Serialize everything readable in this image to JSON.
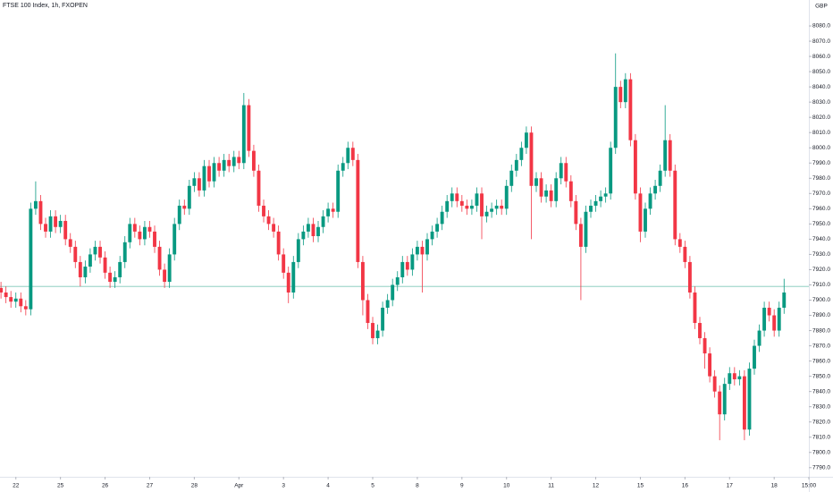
{
  "chart_data": {
    "type": "candlestick",
    "title": "FTSE 100 Index, 1h, FXOPEN",
    "currency": "GBP",
    "up_color": "#089981",
    "down_color": "#f23645",
    "reference_line": 7909,
    "reference_color": "#7fc7b8",
    "xlim": [
      -0.2,
      163
    ],
    "xticks": [
      {
        "value": 3,
        "label": "22"
      },
      {
        "value": 12,
        "label": "25"
      },
      {
        "value": 21,
        "label": "26"
      },
      {
        "value": 30,
        "label": "27"
      },
      {
        "value": 39,
        "label": "28"
      },
      {
        "value": 48,
        "label": "Apr"
      },
      {
        "value": 57,
        "label": "3"
      },
      {
        "value": 66,
        "label": "4"
      },
      {
        "value": 75,
        "label": "5"
      },
      {
        "value": 84,
        "label": "8"
      },
      {
        "value": 93,
        "label": "9"
      },
      {
        "value": 102,
        "label": "10"
      },
      {
        "value": 111,
        "label": "11"
      },
      {
        "value": 120,
        "label": "12"
      },
      {
        "value": 129,
        "label": "15"
      },
      {
        "value": 138,
        "label": "16"
      },
      {
        "value": 147,
        "label": "17"
      },
      {
        "value": 156,
        "label": "18"
      },
      {
        "value": 163,
        "label": "15:00"
      }
    ],
    "ylim": [
      7784,
      8090
    ],
    "yticks": [
      {
        "value": 7790,
        "label": "7790.0"
      },
      {
        "value": 7800,
        "label": "7800.0"
      },
      {
        "value": 7810,
        "label": "7810.0"
      },
      {
        "value": 7820,
        "label": "7820.0"
      },
      {
        "value": 7830,
        "label": "7830.0"
      },
      {
        "value": 7840,
        "label": "7840.0"
      },
      {
        "value": 7850,
        "label": "7850.0"
      },
      {
        "value": 7860,
        "label": "7860.0"
      },
      {
        "value": 7870,
        "label": "7870.0"
      },
      {
        "value": 7880,
        "label": "7880.0"
      },
      {
        "value": 7890,
        "label": "7890.0"
      },
      {
        "value": 7900,
        "label": "7900.0"
      },
      {
        "value": 7910,
        "label": "7910.0"
      },
      {
        "value": 7920,
        "label": "7920.0"
      },
      {
        "value": 7930,
        "label": "7930.0"
      },
      {
        "value": 7940,
        "label": "7940.0"
      },
      {
        "value": 7950,
        "label": "7950.0"
      },
      {
        "value": 7960,
        "label": "7960.0"
      },
      {
        "value": 7970,
        "label": "7970.0"
      },
      {
        "value": 7980,
        "label": "7980.0"
      },
      {
        "value": 7990,
        "label": "7990.0"
      },
      {
        "value": 8000,
        "label": "8000.0"
      },
      {
        "value": 8010,
        "label": "8010.0"
      },
      {
        "value": 8020,
        "label": "8020.0"
      },
      {
        "value": 8030,
        "label": "8030.0"
      },
      {
        "value": 8040,
        "label": "8040.0"
      },
      {
        "value": 8050,
        "label": "8050.0"
      },
      {
        "value": 8060,
        "label": "8060.0"
      },
      {
        "value": 8070,
        "label": "8070.0"
      },
      {
        "value": 8080,
        "label": "8080.0"
      }
    ],
    "open": [
      7908,
      7905,
      7902,
      7899,
      7901,
      7896,
      7894,
      7960,
      7965,
      7950,
      7945,
      7955,
      7948,
      7952,
      7940,
      7935,
      7925,
      7915,
      7922,
      7930,
      7935,
      7928,
      7918,
      7912,
      7915,
      7925,
      7938,
      7950,
      7945,
      7940,
      7948,
      7945,
      7935,
      7920,
      7912,
      7930,
      7950,
      7962,
      7960,
      7975,
      7980,
      7972,
      7988,
      7978,
      7990,
      7985,
      7992,
      7988,
      7994,
      7990,
      8028,
      7998,
      7985,
      7962,
      7955,
      7950,
      7945,
      7930,
      7918,
      7905,
      7925,
      7940,
      7945,
      7950,
      7942,
      7948,
      7955,
      7960,
      7958,
      7985,
      7990,
      8000,
      7992,
      7925,
      7900,
      7885,
      7875,
      7880,
      7895,
      7900,
      7910,
      7915,
      7925,
      7920,
      7930,
      7935,
      7930,
      7940,
      7945,
      7950,
      7958,
      7965,
      7970,
      7965,
      7962,
      7960,
      7962,
      7970,
      7955,
      7958,
      7960,
      7962,
      7960,
      7975,
      7985,
      7992,
      8000,
      8010,
      7975,
      7980,
      7968,
      7972,
      7965,
      7980,
      7990,
      7978,
      7965,
      7950,
      7935,
      7958,
      7962,
      7965,
      7968,
      7970,
      8000,
      8040,
      8030,
      8045,
      8005,
      7970,
      7945,
      7960,
      7970,
      7975,
      7985,
      8005,
      7985,
      7940,
      7935,
      7925,
      7905,
      7885,
      7875,
      7865,
      7850,
      7840,
      7825,
      7845,
      7852,
      7848,
      7850,
      7815,
      7855,
      7870,
      7880,
      7895,
      7890,
      7880,
      7895
    ],
    "high": [
      7912,
      7909,
      7906,
      7905,
      7905,
      7900,
      7964,
      7978,
      7969,
      7954,
      7959,
      7959,
      7956,
      7956,
      7944,
      7939,
      7929,
      7926,
      7934,
      7939,
      7939,
      7932,
      7922,
      7919,
      7929,
      7942,
      7954,
      7954,
      7949,
      7952,
      7952,
      7949,
      7939,
      7924,
      7934,
      7954,
      7966,
      7966,
      7979,
      7984,
      7984,
      7992,
      7992,
      7994,
      7994,
      7996,
      7996,
      7998,
      7998,
      8036,
      8032,
      8002,
      7989,
      7966,
      7959,
      7954,
      7949,
      7934,
      7922,
      7929,
      7944,
      7949,
      7954,
      7954,
      7952,
      7959,
      7964,
      7964,
      7989,
      7994,
      8004,
      8004,
      7996,
      7929,
      7904,
      7889,
      7884,
      7899,
      7904,
      7914,
      7919,
      7929,
      7929,
      7934,
      7939,
      7939,
      7944,
      7949,
      7954,
      7962,
      7969,
      7974,
      7974,
      7969,
      7966,
      7966,
      7974,
      7974,
      7962,
      7964,
      7966,
      7966,
      7979,
      7989,
      7996,
      8004,
      8014,
      8014,
      7984,
      7984,
      7976,
      7976,
      7984,
      7994,
      7994,
      7982,
      7969,
      7954,
      7962,
      7966,
      7969,
      7972,
      7974,
      8004,
      8062,
      8044,
      8049,
      8049,
      8009,
      7974,
      7964,
      7974,
      7979,
      7989,
      8028,
      8009,
      7989,
      7944,
      7939,
      7929,
      7909,
      7889,
      7879,
      7869,
      7854,
      7844,
      7849,
      7856,
      7856,
      7854,
      7854,
      7859,
      7874,
      7884,
      7899,
      7899,
      7894,
      7899,
      7914
    ],
    "low": [
      7901,
      7898,
      7895,
      7895,
      7892,
      7890,
      7890,
      7956,
      7946,
      7941,
      7941,
      7944,
      7944,
      7936,
      7931,
      7921,
      7909,
      7911,
      7918,
      7926,
      7924,
      7914,
      7908,
      7908,
      7911,
      7921,
      7934,
      7941,
      7936,
      7936,
      7941,
      7931,
      7916,
      7908,
      7908,
      7926,
      7946,
      7956,
      7956,
      7971,
      7968,
      7968,
      7974,
      7974,
      7981,
      7981,
      7984,
      7984,
      7986,
      7986,
      7994,
      7981,
      7958,
      7951,
      7946,
      7941,
      7926,
      7914,
      7898,
      7901,
      7921,
      7936,
      7941,
      7938,
      7938,
      7944,
      7951,
      7954,
      7954,
      7981,
      7986,
      7988,
      7921,
      7890,
      7881,
      7871,
      7871,
      7876,
      7891,
      7896,
      7906,
      7911,
      7916,
      7916,
      7926,
      7905,
      7926,
      7936,
      7941,
      7946,
      7954,
      7961,
      7961,
      7958,
      7956,
      7956,
      7958,
      7940,
      7951,
      7954,
      7956,
      7956,
      7956,
      7971,
      7981,
      7988,
      7996,
      7940,
      7971,
      7964,
      7964,
      7961,
      7961,
      7976,
      7974,
      7961,
      7946,
      7900,
      7931,
      7954,
      7958,
      7961,
      7964,
      7966,
      7996,
      8026,
      8026,
      8001,
      7966,
      7938,
      7941,
      7956,
      7966,
      7971,
      7981,
      7981,
      7936,
      7931,
      7921,
      7901,
      7881,
      7871,
      7855,
      7846,
      7836,
      7808,
      7821,
      7841,
      7844,
      7844,
      7808,
      7811,
      7851,
      7866,
      7876,
      7886,
      7876,
      7876,
      7891
    ],
    "close": [
      7905,
      7902,
      7899,
      7901,
      7896,
      7894,
      7960,
      7965,
      7950,
      7945,
      7955,
      7948,
      7952,
      7940,
      7935,
      7925,
      7915,
      7922,
      7930,
      7935,
      7928,
      7918,
      7912,
      7915,
      7925,
      7938,
      7950,
      7945,
      7940,
      7948,
      7945,
      7935,
      7920,
      7912,
      7930,
      7950,
      7962,
      7960,
      7975,
      7980,
      7972,
      7988,
      7978,
      7990,
      7985,
      7992,
      7988,
      7994,
      7990,
      8028,
      7998,
      7985,
      7962,
      7955,
      7950,
      7945,
      7930,
      7918,
      7905,
      7925,
      7940,
      7945,
      7950,
      7942,
      7948,
      7955,
      7960,
      7958,
      7985,
      7990,
      8000,
      7992,
      7925,
      7900,
      7885,
      7875,
      7880,
      7895,
      7900,
      7910,
      7915,
      7925,
      7920,
      7930,
      7935,
      7930,
      7940,
      7945,
      7950,
      7958,
      7965,
      7970,
      7965,
      7962,
      7960,
      7962,
      7970,
      7955,
      7958,
      7960,
      7962,
      7960,
      7975,
      7985,
      7992,
      8000,
      8010,
      7975,
      7980,
      7968,
      7972,
      7965,
      7980,
      7990,
      7978,
      7965,
      7950,
      7935,
      7958,
      7962,
      7965,
      7968,
      7970,
      8000,
      8040,
      8030,
      8045,
      8005,
      7970,
      7945,
      7960,
      7970,
      7975,
      7985,
      8005,
      7985,
      7940,
      7935,
      7925,
      7905,
      7885,
      7875,
      7865,
      7850,
      7840,
      7825,
      7845,
      7852,
      7848,
      7850,
      7815,
      7855,
      7870,
      7880,
      7895,
      7890,
      7880,
      7895,
      7905
    ]
  }
}
